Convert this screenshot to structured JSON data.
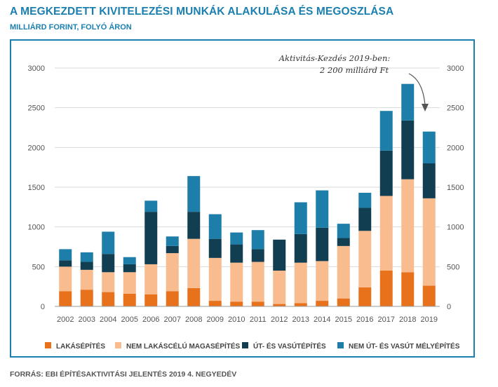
{
  "header": {
    "title": "A MEGKEZDETT KIVITELEZÉSI MUNKÁK ALAKULÁSA ÉS MEGOSZLÁSA",
    "subtitle": "MILLIÁRD FORINT, FOLYÓ ÁRON"
  },
  "source": "FORRÁS: EBI ÉPÍTÉSAKTIVITÁSI JELENTÉS 2019 4. NEGYEDÉV",
  "annotation": {
    "line1": "Aktivitás-Kezdés 2019-ben:",
    "line2": "2 200 milliárd Ft"
  },
  "colors": {
    "accent": "#1b7fb0",
    "lakas": "#e8711b",
    "nemlakas": "#f8bc8f",
    "ut": "#123e52",
    "nemut": "#1d7ea9",
    "grid": "#d9d9d9"
  },
  "chart_data": {
    "type": "bar",
    "stacked": true,
    "categories": [
      "2002",
      "2003",
      "2004",
      "2005",
      "2006",
      "2007",
      "2008",
      "2009",
      "2010",
      "2011",
      "2012",
      "2013",
      "2014",
      "2015",
      "2016",
      "2017",
      "2018",
      "2019"
    ],
    "ylim": [
      0,
      3000
    ],
    "yticks": [
      "0",
      "500",
      "1000",
      "1500",
      "2000",
      "2500",
      "3000"
    ],
    "grid": true,
    "legend_position": "bottom",
    "series": [
      {
        "name": "LAKÁSÉPÍTÉS",
        "color": "#e8711b",
        "values": [
          190,
          210,
          180,
          160,
          150,
          190,
          230,
          70,
          60,
          60,
          30,
          40,
          70,
          100,
          240,
          450,
          430,
          260
        ]
      },
      {
        "name": "NEM LAKÁSCÉLÚ MAGASÉPÍTÉS",
        "color": "#f8bc8f",
        "values": [
          310,
          250,
          250,
          270,
          380,
          480,
          620,
          540,
          490,
          500,
          420,
          510,
          500,
          660,
          710,
          940,
          1170,
          1100
        ]
      },
      {
        "name": "ÚT- ÉS VASÚTÉPÍTÉS",
        "color": "#123e52",
        "values": [
          80,
          100,
          230,
          100,
          660,
          90,
          340,
          240,
          230,
          160,
          390,
          360,
          420,
          100,
          290,
          570,
          740,
          440
        ]
      },
      {
        "name": "NEM ÚT- ÉS VASÚT MÉLYÉPÍTÉS",
        "color": "#1d7ea9",
        "values": [
          140,
          120,
          280,
          90,
          140,
          120,
          450,
          310,
          150,
          240,
          0,
          400,
          470,
          180,
          190,
          500,
          460,
          400
        ]
      }
    ]
  }
}
